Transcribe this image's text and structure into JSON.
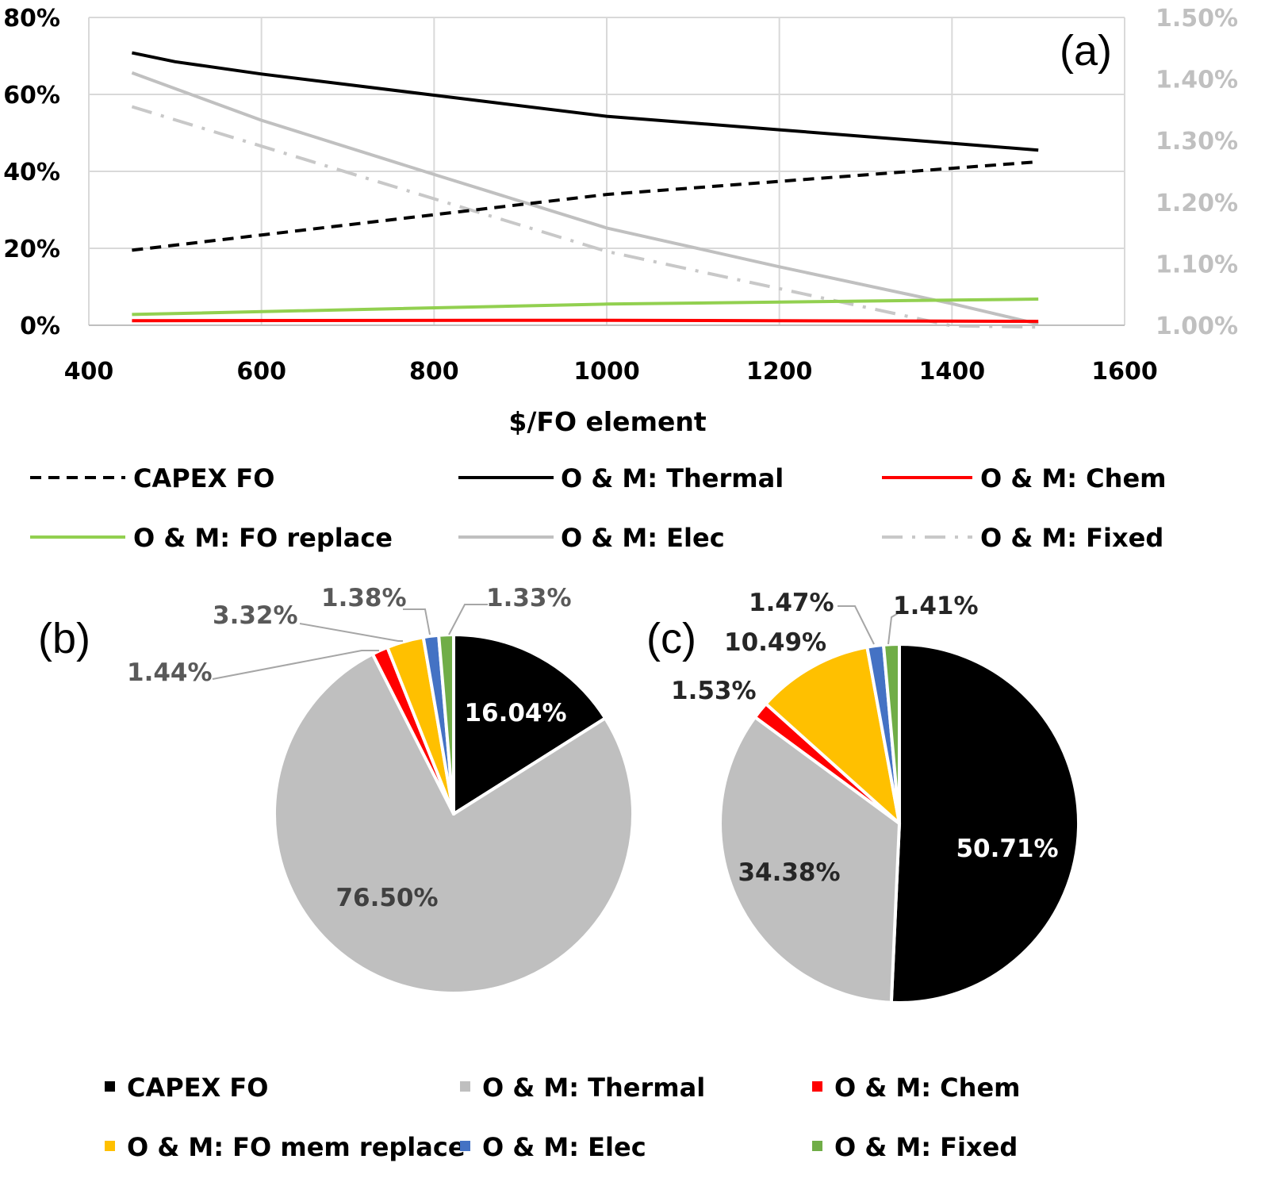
{
  "chart_data": [
    {
      "id": "a",
      "type": "line",
      "panel_label": "(a)",
      "xlabel": "$/FO element",
      "x_ticks": [
        "400",
        "600",
        "800",
        "1000",
        "1200",
        "1400",
        "1600"
      ],
      "xlim": [
        400,
        1600
      ],
      "y_left_ticks": [
        "0%",
        "20%",
        "40%",
        "60%",
        "80%"
      ],
      "ylim_left": [
        0,
        80
      ],
      "y_right_ticks": [
        "1.00%",
        "1.10%",
        "1.20%",
        "1.30%",
        "1.40%",
        "1.50%"
      ],
      "ylim_right": [
        1.0,
        1.5
      ],
      "grid": true,
      "legend_position": "bottom",
      "series": [
        {
          "name": "CAPEX FO",
          "axis": "left",
          "color": "#000000",
          "style": "dashed",
          "x": [
            450,
            1000,
            1500
          ],
          "y": [
            19.5,
            34,
            42.5
          ]
        },
        {
          "name": "O & M: Thermal",
          "axis": "left",
          "color": "#000000",
          "style": "solid",
          "x": [
            450,
            500,
            600,
            800,
            1000,
            1200,
            1400,
            1500
          ],
          "y": [
            70.8,
            68.5,
            65.3,
            59.8,
            54.3,
            50.8,
            47.3,
            45.5
          ]
        },
        {
          "name": "O & M: Chem",
          "axis": "left",
          "color": "#ff0000",
          "style": "solid",
          "x": [
            450,
            1000,
            1500
          ],
          "y": [
            1.2,
            1.3,
            1.0
          ]
        },
        {
          "name": "O & M: FO replace",
          "axis": "left",
          "color": "#92d050",
          "style": "solid",
          "x": [
            450,
            1000,
            1500
          ],
          "y": [
            2.8,
            5.5,
            6.8
          ]
        },
        {
          "name": "O & M: Elec",
          "axis": "right",
          "color": "#c0c0c0",
          "style": "solid",
          "x": [
            450,
            600,
            800,
            1000,
            1200,
            1400,
            1500
          ],
          "y": [
            1.41,
            1.333,
            1.245,
            1.158,
            1.095,
            1.035,
            1.002
          ]
        },
        {
          "name": "O & M: Fixed",
          "axis": "right",
          "color": "#c8c8c8",
          "style": "dashdot",
          "x": [
            450,
            1000,
            1400,
            1500
          ],
          "y": [
            1.355,
            1.12,
            0.999,
            0.997
          ]
        }
      ]
    },
    {
      "id": "b",
      "type": "pie",
      "panel_label": "(b)",
      "labels": [
        "CAPEX FO",
        "O & M: Thermal",
        "O & M: Chem",
        "O & M: FO mem replace",
        "O & M: Elec",
        "O & M: Fixed"
      ],
      "values": [
        16.04,
        76.5,
        1.44,
        3.32,
        1.38,
        1.33
      ],
      "value_labels": [
        "16.04%",
        "76.50%",
        "1.44%",
        "3.32%",
        "1.38%",
        "1.33%"
      ],
      "colors": [
        "#000000",
        "#bfbfbf",
        "#ff0000",
        "#ffc000",
        "#4472c4",
        "#70ad47"
      ]
    },
    {
      "id": "c",
      "type": "pie",
      "panel_label": "(c)",
      "labels": [
        "CAPEX FO",
        "O & M: Thermal",
        "O & M: Chem",
        "O & M: FO mem replace",
        "O & M: Elec",
        "O & M: Fixed"
      ],
      "values": [
        50.71,
        34.38,
        1.53,
        10.49,
        1.47,
        1.41
      ],
      "value_labels": [
        "50.71%",
        "34.38%",
        "1.53%",
        "10.49%",
        "1.47%",
        "1.41%"
      ],
      "colors": [
        "#000000",
        "#bfbfbf",
        "#ff0000",
        "#ffc000",
        "#4472c4",
        "#70ad47"
      ]
    }
  ],
  "pie_legend": [
    {
      "label": "CAPEX FO",
      "color": "#000000"
    },
    {
      "label": "O & M: Thermal",
      "color": "#bfbfbf"
    },
    {
      "label": "O & M: Chem",
      "color": "#ff0000"
    },
    {
      "label": "O & M: FO mem replace",
      "color": "#ffc000"
    },
    {
      "label": "O & M: Elec",
      "color": "#4472c4"
    },
    {
      "label": "O & M: Fixed",
      "color": "#70ad47"
    }
  ]
}
